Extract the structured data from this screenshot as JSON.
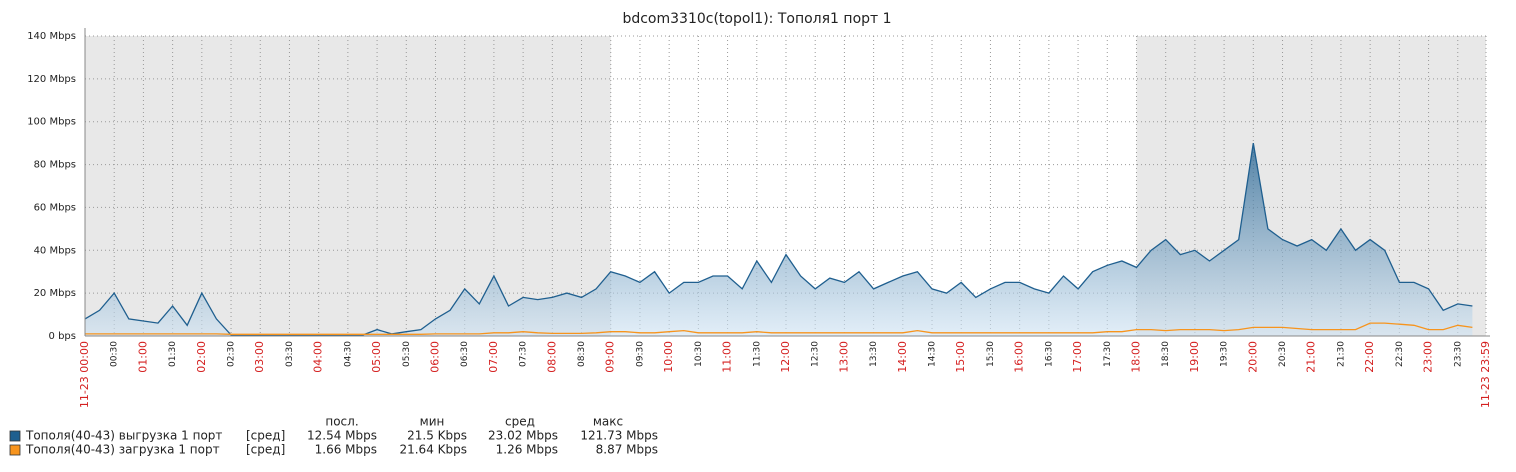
{
  "chart_data": {
    "type": "line",
    "title": "bdcom3310c(topol1): Тополя1 порт 1",
    "x": [
      0,
      0.25,
      0.5,
      0.75,
      1,
      1.25,
      1.5,
      1.75,
      2,
      2.25,
      2.5,
      2.75,
      3,
      3.25,
      3.5,
      3.75,
      4,
      4.25,
      4.5,
      4.75,
      5,
      5.25,
      5.5,
      5.75,
      6,
      6.25,
      6.5,
      6.75,
      7,
      7.25,
      7.5,
      7.75,
      8,
      8.25,
      8.5,
      8.75,
      9,
      9.25,
      9.5,
      9.75,
      10,
      10.25,
      10.5,
      10.75,
      11,
      11.25,
      11.5,
      11.75,
      12,
      12.25,
      12.5,
      12.75,
      13,
      13.25,
      13.5,
      13.75,
      14,
      14.25,
      14.5,
      14.75,
      15,
      15.25,
      15.5,
      15.75,
      16,
      16.25,
      16.5,
      16.75,
      17,
      17.25,
      17.5,
      17.75,
      18,
      18.25,
      18.5,
      18.75,
      19,
      19.25,
      19.5,
      19.75,
      20,
      20.25,
      20.5,
      20.75,
      21,
      21.25,
      21.5,
      21.75,
      22,
      22.25,
      22.5,
      22.75,
      23,
      23.25,
      23.5,
      23.75
    ],
    "series": [
      {
        "name": "Тополя(40-43) выгрузка 1 порт",
        "color": "#1f5f8f",
        "fill": true,
        "values": [
          8,
          12,
          20,
          8,
          7,
          6,
          14,
          5,
          20,
          8,
          0.5,
          0.3,
          0.3,
          0.3,
          0.3,
          0.3,
          0.5,
          0.4,
          0.5,
          0.4,
          3,
          1,
          2,
          3,
          8,
          12,
          22,
          15,
          28,
          14,
          18,
          17,
          18,
          20,
          18,
          22,
          30,
          28,
          25,
          30,
          20,
          25,
          25,
          28,
          28,
          22,
          35,
          25,
          38,
          28,
          22,
          27,
          25,
          30,
          22,
          25,
          28,
          30,
          22,
          20,
          25,
          18,
          22,
          25,
          25,
          22,
          20,
          28,
          22,
          30,
          33,
          35,
          32,
          40,
          45,
          38,
          40,
          35,
          40,
          45,
          90,
          50,
          45,
          42,
          45,
          40,
          50,
          40,
          45,
          40,
          25,
          25,
          22,
          12,
          15,
          14
        ]
      },
      {
        "name": "Тополя(40-43) загрузка 1 порт",
        "color": "#f7941d",
        "fill": false,
        "values": [
          1,
          1,
          1,
          1,
          1,
          1,
          1,
          1,
          1,
          1,
          0.8,
          0.8,
          0.8,
          0.8,
          0.8,
          0.8,
          0.8,
          0.8,
          0.8,
          0.8,
          0.8,
          0.8,
          0.8,
          0.8,
          1,
          1,
          1,
          1,
          1.5,
          1.5,
          2,
          1.5,
          1.2,
          1.2,
          1.2,
          1.5,
          2,
          2,
          1.5,
          1.5,
          2,
          2.5,
          1.5,
          1.5,
          1.5,
          1.5,
          2,
          1.5,
          1.5,
          1.5,
          1.5,
          1.5,
          1.5,
          1.5,
          1.5,
          1.5,
          1.5,
          2.5,
          1.5,
          1.5,
          1.5,
          1.5,
          1.5,
          1.5,
          1.5,
          1.5,
          1.5,
          1.5,
          1.5,
          1.5,
          2,
          2,
          3,
          3,
          2.5,
          3,
          3,
          3,
          2.5,
          3,
          4,
          4,
          4,
          3.5,
          3,
          3,
          3,
          3,
          6,
          6,
          5.5,
          5,
          3,
          3,
          5,
          4
        ]
      }
    ],
    "xlim": [
      0,
      23.9833
    ],
    "xticks": [
      {
        "value": 0,
        "label": "11-23 00:00"
      },
      {
        "value": 0.5,
        "label": "00:30"
      },
      {
        "value": 1,
        "label": "01:00"
      },
      {
        "value": 1.5,
        "label": "01:30"
      },
      {
        "value": 2,
        "label": "02:00"
      },
      {
        "value": 2.5,
        "label": "02:30"
      },
      {
        "value": 3,
        "label": "03:00"
      },
      {
        "value": 3.5,
        "label": "03:30"
      },
      {
        "value": 4,
        "label": "04:00"
      },
      {
        "value": 4.5,
        "label": "04:30"
      },
      {
        "value": 5,
        "label": "05:00"
      },
      {
        "value": 5.5,
        "label": "05:30"
      },
      {
        "value": 6,
        "label": "06:00"
      },
      {
        "value": 6.5,
        "label": "06:30"
      },
      {
        "value": 7,
        "label": "07:00"
      },
      {
        "value": 7.5,
        "label": "07:30"
      },
      {
        "value": 8,
        "label": "08:00"
      },
      {
        "value": 8.5,
        "label": "08:30"
      },
      {
        "value": 9,
        "label": "09:00"
      },
      {
        "value": 9.5,
        "label": "09:30"
      },
      {
        "value": 10,
        "label": "10:00"
      },
      {
        "value": 10.5,
        "label": "10:30"
      },
      {
        "value": 11,
        "label": "11:00"
      },
      {
        "value": 11.5,
        "label": "11:30"
      },
      {
        "value": 12,
        "label": "12:00"
      },
      {
        "value": 12.5,
        "label": "12:30"
      },
      {
        "value": 13,
        "label": "13:00"
      },
      {
        "value": 13.5,
        "label": "13:30"
      },
      {
        "value": 14,
        "label": "14:00"
      },
      {
        "value": 14.5,
        "label": "14:30"
      },
      {
        "value": 15,
        "label": "15:00"
      },
      {
        "value": 15.5,
        "label": "15:30"
      },
      {
        "value": 16,
        "label": "16:00"
      },
      {
        "value": 16.5,
        "label": "16:30"
      },
      {
        "value": 17,
        "label": "17:00"
      },
      {
        "value": 17.5,
        "label": "17:30"
      },
      {
        "value": 18,
        "label": "18:00"
      },
      {
        "value": 18.5,
        "label": "18:30"
      },
      {
        "value": 19,
        "label": "19:00"
      },
      {
        "value": 19.5,
        "label": "19:30"
      },
      {
        "value": 20,
        "label": "20:00"
      },
      {
        "value": 20.5,
        "label": "20:30"
      },
      {
        "value": 21,
        "label": "21:00"
      },
      {
        "value": 21.5,
        "label": "21:30"
      },
      {
        "value": 22,
        "label": "22:00"
      },
      {
        "value": 22.5,
        "label": "22:30"
      },
      {
        "value": 23,
        "label": "23:00"
      },
      {
        "value": 23.5,
        "label": "23:30"
      },
      {
        "value": 23.9833,
        "label": "11-23 23:59"
      }
    ],
    "ylim": [
      0,
      140
    ],
    "yticks": [
      {
        "value": 0,
        "label": "0 bps"
      },
      {
        "value": 20,
        "label": "20 Mbps"
      },
      {
        "value": 40,
        "label": "40 Mbps"
      },
      {
        "value": 60,
        "label": "60 Mbps"
      },
      {
        "value": 80,
        "label": "80 Mbps"
      },
      {
        "value": 100,
        "label": "100 Mbps"
      },
      {
        "value": 120,
        "label": "120 Mbps"
      },
      {
        "value": 140,
        "label": "140 Mbps"
      }
    ],
    "grid": true,
    "shaded_ranges": [
      [
        0,
        9
      ],
      [
        18,
        23.9833
      ]
    ],
    "legend_stats": {
      "headers": [
        "посл.",
        "мин",
        "сред",
        "макс"
      ],
      "rows": [
        {
          "func": "[сред]",
          "cells": [
            "12.54 Mbps",
            "21.5 Kbps",
            "23.02 Mbps",
            "121.73 Mbps"
          ]
        },
        {
          "func": "[сред]",
          "cells": [
            "1.66 Mbps",
            "21.64 Kbps",
            "1.26 Mbps",
            "8.87 Mbps"
          ]
        }
      ]
    }
  }
}
